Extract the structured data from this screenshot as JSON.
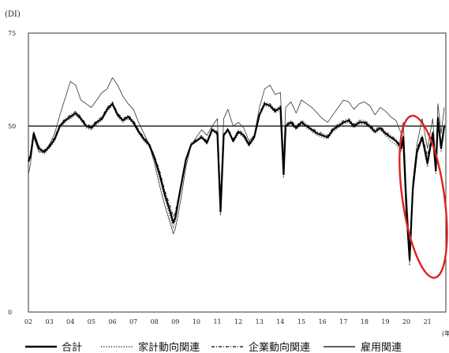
{
  "chart_data": {
    "type": "line",
    "unit_label": "(DI)",
    "x_unit_label": "(年",
    "ylim": [
      0,
      75
    ],
    "yticks": [
      "0",
      "50",
      "75"
    ],
    "reference_line": 50,
    "xlim": [
      2002,
      2022
    ],
    "xtick_labels": [
      "02",
      "03",
      "04",
      "05",
      "06",
      "07",
      "08",
      "09",
      "10",
      "11",
      "12",
      "13",
      "14",
      "15",
      "16",
      "17",
      "18",
      "19",
      "20",
      "21"
    ],
    "legend_position": "bottom",
    "highlight": {
      "shape": "ellipse",
      "color": "#e02020",
      "x_range": [
        2019.8,
        2021.8
      ],
      "y_range": [
        9,
        53
      ]
    },
    "x": [
      2002.0,
      2002.1,
      2002.25,
      2002.5,
      2002.75,
      2003.0,
      2003.25,
      2003.5,
      2003.75,
      2004.0,
      2004.25,
      2004.5,
      2004.75,
      2005.0,
      2005.25,
      2005.5,
      2005.75,
      2006.0,
      2006.25,
      2006.5,
      2006.75,
      2007.0,
      2007.25,
      2007.5,
      2007.75,
      2008.0,
      2008.25,
      2008.5,
      2008.75,
      2008.9,
      2009.0,
      2009.25,
      2009.5,
      2009.75,
      2010.0,
      2010.25,
      2010.5,
      2010.75,
      2011.0,
      2011.15,
      2011.3,
      2011.5,
      2011.75,
      2012.0,
      2012.25,
      2012.5,
      2012.75,
      2013.0,
      2013.25,
      2013.5,
      2013.75,
      2014.0,
      2014.15,
      2014.25,
      2014.5,
      2014.75,
      2015.0,
      2015.25,
      2015.5,
      2015.75,
      2016.0,
      2016.25,
      2016.5,
      2016.75,
      2017.0,
      2017.25,
      2017.5,
      2017.75,
      2018.0,
      2018.25,
      2018.5,
      2018.75,
      2019.0,
      2019.25,
      2019.5,
      2019.75,
      2019.85,
      2020.0,
      2020.15,
      2020.3,
      2020.5,
      2020.75,
      2021.0,
      2021.25,
      2021.4,
      2021.5,
      2021.65,
      2021.8
    ],
    "series": [
      {
        "name": "合計",
        "dash": "",
        "width": 2.2,
        "color": "#000000",
        "values": [
          40.5,
          42.0,
          48.0,
          44.0,
          43.0,
          44.5,
          46.5,
          50.0,
          51.5,
          52.5,
          53.5,
          52.0,
          50.0,
          49.5,
          51.0,
          52.0,
          54.5,
          56.0,
          53.0,
          51.5,
          52.5,
          51.0,
          48.5,
          46.5,
          45.0,
          41.5,
          37.0,
          31.5,
          27.0,
          24.0,
          25.5,
          33.5,
          41.0,
          45.0,
          46.0,
          47.0,
          45.5,
          49.0,
          48.0,
          27.0,
          47.5,
          49.0,
          46.0,
          48.5,
          47.5,
          45.0,
          47.0,
          53.0,
          56.0,
          55.5,
          54.0,
          55.0,
          37.0,
          50.0,
          51.0,
          49.5,
          51.0,
          50.0,
          49.0,
          48.0,
          47.5,
          47.0,
          49.0,
          50.0,
          51.0,
          51.5,
          50.0,
          51.0,
          51.0,
          50.0,
          48.5,
          49.5,
          48.0,
          47.0,
          46.0,
          44.0,
          47.0,
          27.0,
          14.0,
          33.0,
          43.0,
          47.0,
          40.0,
          48.0,
          38.0,
          52.0,
          44.0,
          50.0
        ]
      },
      {
        "name": "家計動向関連",
        "dash": "1.2 2",
        "width": 1.1,
        "color": "#222222",
        "values": [
          40.0,
          41.5,
          47.5,
          43.5,
          42.5,
          44.0,
          46.0,
          49.5,
          51.0,
          52.0,
          53.0,
          51.5,
          49.5,
          49.0,
          50.5,
          51.5,
          54.0,
          55.5,
          52.5,
          51.0,
          52.0,
          50.5,
          48.0,
          46.0,
          44.5,
          41.0,
          36.0,
          30.5,
          25.5,
          22.5,
          24.5,
          33.0,
          41.0,
          45.5,
          46.0,
          47.0,
          45.0,
          49.0,
          47.5,
          26.0,
          48.0,
          49.0,
          45.5,
          48.0,
          47.0,
          44.5,
          46.5,
          53.0,
          55.5,
          55.0,
          53.5,
          54.5,
          36.0,
          50.0,
          50.5,
          49.0,
          50.5,
          49.5,
          48.5,
          47.5,
          47.0,
          46.5,
          48.5,
          49.5,
          50.5,
          51.0,
          49.5,
          50.5,
          50.5,
          49.5,
          48.0,
          49.0,
          47.5,
          46.0,
          45.0,
          43.0,
          46.0,
          26.0,
          12.5,
          32.0,
          42.5,
          46.5,
          39.0,
          47.5,
          37.0,
          51.5,
          43.0,
          49.5
        ]
      },
      {
        "name": "企業動向関連",
        "dash": "4 2 1 2",
        "width": 1.0,
        "color": "#222222",
        "values": [
          41.0,
          42.5,
          48.5,
          44.5,
          43.5,
          45.0,
          47.0,
          50.5,
          52.0,
          53.0,
          54.0,
          52.5,
          50.5,
          50.0,
          51.5,
          52.5,
          55.0,
          56.5,
          53.5,
          52.0,
          53.0,
          51.5,
          49.0,
          47.0,
          45.5,
          42.0,
          38.0,
          32.5,
          28.5,
          25.5,
          27.0,
          34.0,
          41.5,
          45.0,
          46.5,
          47.5,
          46.0,
          49.5,
          48.5,
          29.0,
          47.5,
          49.5,
          46.5,
          49.0,
          48.0,
          45.5,
          47.5,
          53.5,
          56.5,
          56.0,
          54.5,
          55.5,
          39.0,
          50.5,
          51.5,
          50.0,
          51.5,
          50.5,
          49.5,
          48.5,
          48.0,
          47.5,
          49.5,
          50.5,
          51.5,
          52.0,
          50.5,
          51.5,
          51.5,
          50.5,
          49.0,
          50.0,
          48.5,
          47.5,
          46.5,
          44.5,
          47.5,
          29.0,
          17.0,
          34.0,
          44.0,
          47.5,
          42.0,
          48.5,
          40.0,
          52.5,
          45.0,
          50.5
        ]
      },
      {
        "name": "雇用関連",
        "dash": "",
        "width": 0.8,
        "color": "#333333",
        "values": [
          37.0,
          40.0,
          47.0,
          43.0,
          43.0,
          45.0,
          48.0,
          53.0,
          57.5,
          62.0,
          61.0,
          57.0,
          56.0,
          55.0,
          57.0,
          59.0,
          60.0,
          63.0,
          61.0,
          58.0,
          56.0,
          54.5,
          51.0,
          48.0,
          45.0,
          40.0,
          34.0,
          28.5,
          24.0,
          21.0,
          22.5,
          30.0,
          39.0,
          45.0,
          47.0,
          49.0,
          47.5,
          50.0,
          52.0,
          31.0,
          52.0,
          54.5,
          50.0,
          51.0,
          49.5,
          46.0,
          47.5,
          55.0,
          60.0,
          61.0,
          58.5,
          59.0,
          41.0,
          55.0,
          56.5,
          53.5,
          57.0,
          56.0,
          55.0,
          53.5,
          52.0,
          51.0,
          53.0,
          55.0,
          57.0,
          56.5,
          54.5,
          56.0,
          56.5,
          55.5,
          53.0,
          55.0,
          54.0,
          52.5,
          51.5,
          48.0,
          51.0,
          32.0,
          17.0,
          35.0,
          45.0,
          52.0,
          44.0,
          52.0,
          41.0,
          56.0,
          48.0,
          55.0
        ]
      }
    ]
  }
}
